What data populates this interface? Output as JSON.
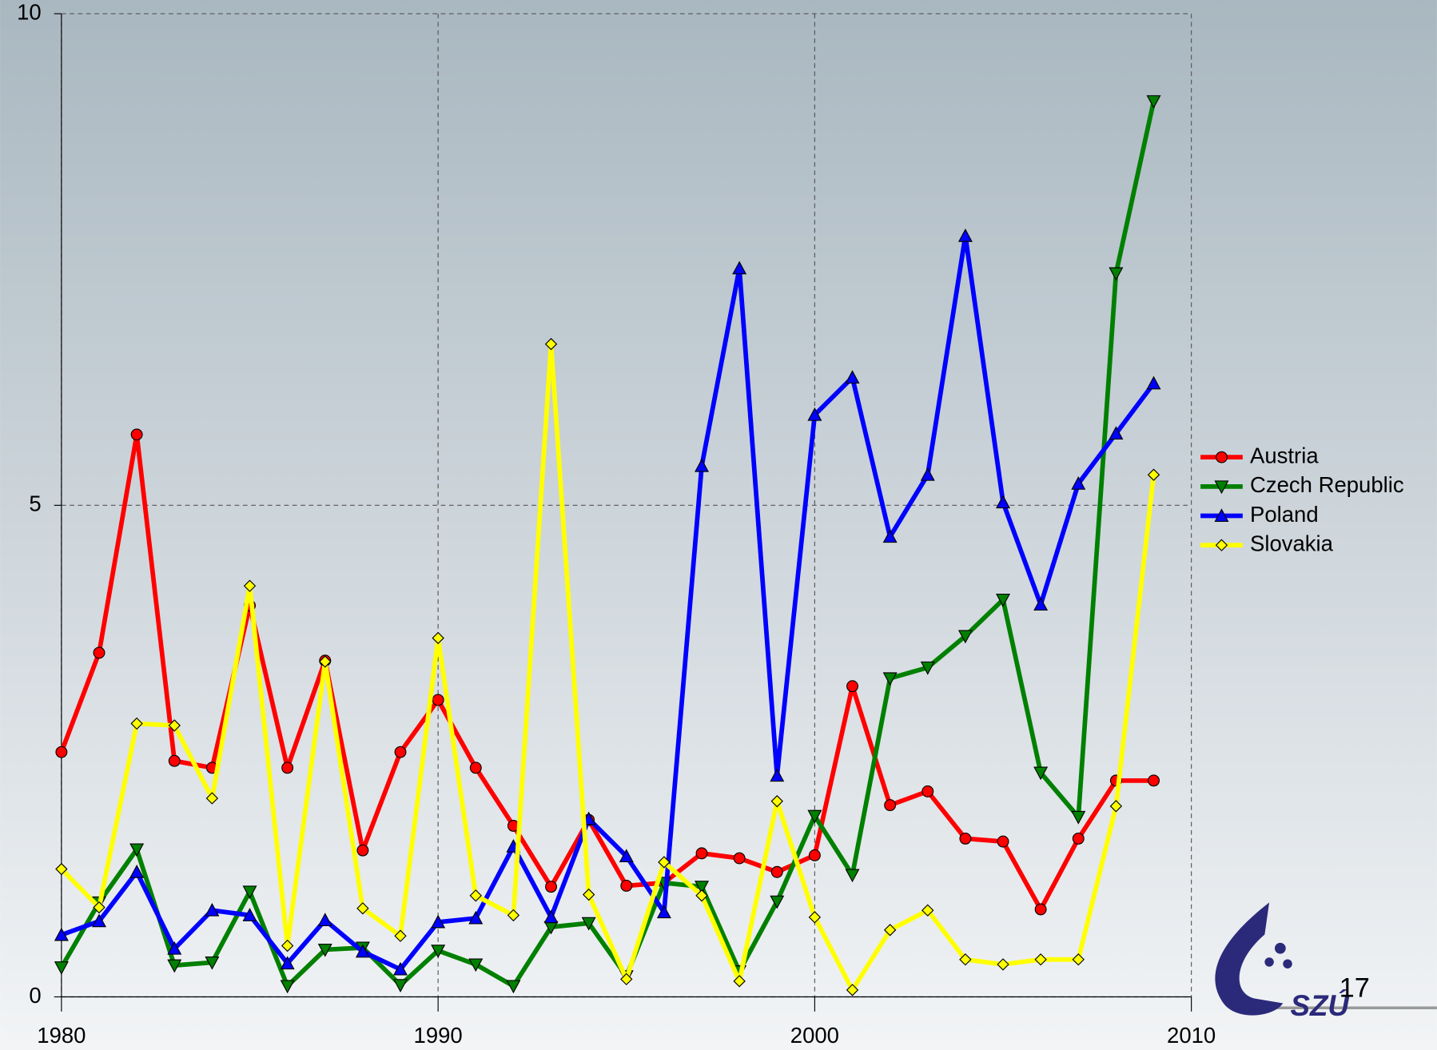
{
  "chart_data": {
    "type": "line",
    "x": [
      1980,
      1981,
      1982,
      1983,
      1984,
      1985,
      1986,
      1987,
      1988,
      1989,
      1990,
      1991,
      1992,
      1993,
      1994,
      1995,
      1996,
      1997,
      1998,
      1999,
      2000,
      2001,
      2002,
      2003,
      2004,
      2005,
      2006,
      2007,
      2008,
      2009
    ],
    "xlim": [
      1980,
      2010
    ],
    "xticks": [
      1980,
      1990,
      2000,
      2010
    ],
    "ylim": [
      0,
      10
    ],
    "yticks": [
      0,
      5,
      10
    ],
    "grid": true,
    "legend": "right",
    "series": [
      {
        "name": "Austria",
        "color": "#ff0000",
        "marker": "circle",
        "values": [
          2.49,
          3.5,
          5.72,
          2.4,
          2.33,
          3.98,
          2.33,
          3.42,
          1.49,
          2.49,
          3.02,
          2.33,
          1.74,
          1.12,
          1.8,
          1.13,
          1.16,
          1.46,
          1.41,
          1.27,
          1.44,
          3.16,
          1.95,
          2.09,
          1.61,
          1.58,
          0.89,
          1.61,
          2.2,
          2.2
        ]
      },
      {
        "name": "Czech Republic",
        "color": "#008000",
        "marker": "triangle-down",
        "values": [
          0.3,
          0.96,
          1.5,
          0.32,
          0.35,
          1.07,
          0.11,
          0.48,
          0.5,
          0.12,
          0.47,
          0.33,
          0.11,
          0.71,
          0.75,
          0.21,
          1.16,
          1.12,
          0.26,
          0.97,
          1.84,
          1.24,
          3.24,
          3.35,
          3.67,
          4.04,
          2.28,
          1.83,
          7.36,
          9.11
        ]
      },
      {
        "name": "Poland",
        "color": "#0000ff",
        "marker": "triangle-up",
        "values": [
          0.63,
          0.77,
          1.27,
          0.49,
          0.88,
          0.83,
          0.34,
          0.78,
          0.46,
          0.28,
          0.76,
          0.8,
          1.53,
          0.81,
          1.81,
          1.43,
          0.86,
          5.4,
          7.41,
          2.25,
          5.92,
          6.3,
          4.68,
          5.31,
          7.74,
          5.03,
          3.99,
          5.22,
          5.73,
          6.24
        ]
      },
      {
        "name": "Slovakia",
        "color": "#ffff00",
        "marker": "diamond",
        "values": [
          1.3,
          0.91,
          2.78,
          2.76,
          2.02,
          4.18,
          0.52,
          3.41,
          0.9,
          0.62,
          3.65,
          1.03,
          0.83,
          6.64,
          1.04,
          0.18,
          1.37,
          1.03,
          0.16,
          1.99,
          0.81,
          0.07,
          0.68,
          0.88,
          0.38,
          0.33,
          0.38,
          0.38,
          1.94,
          5.31
        ]
      }
    ]
  },
  "page_number": "17",
  "logo_text": "SZÚ"
}
